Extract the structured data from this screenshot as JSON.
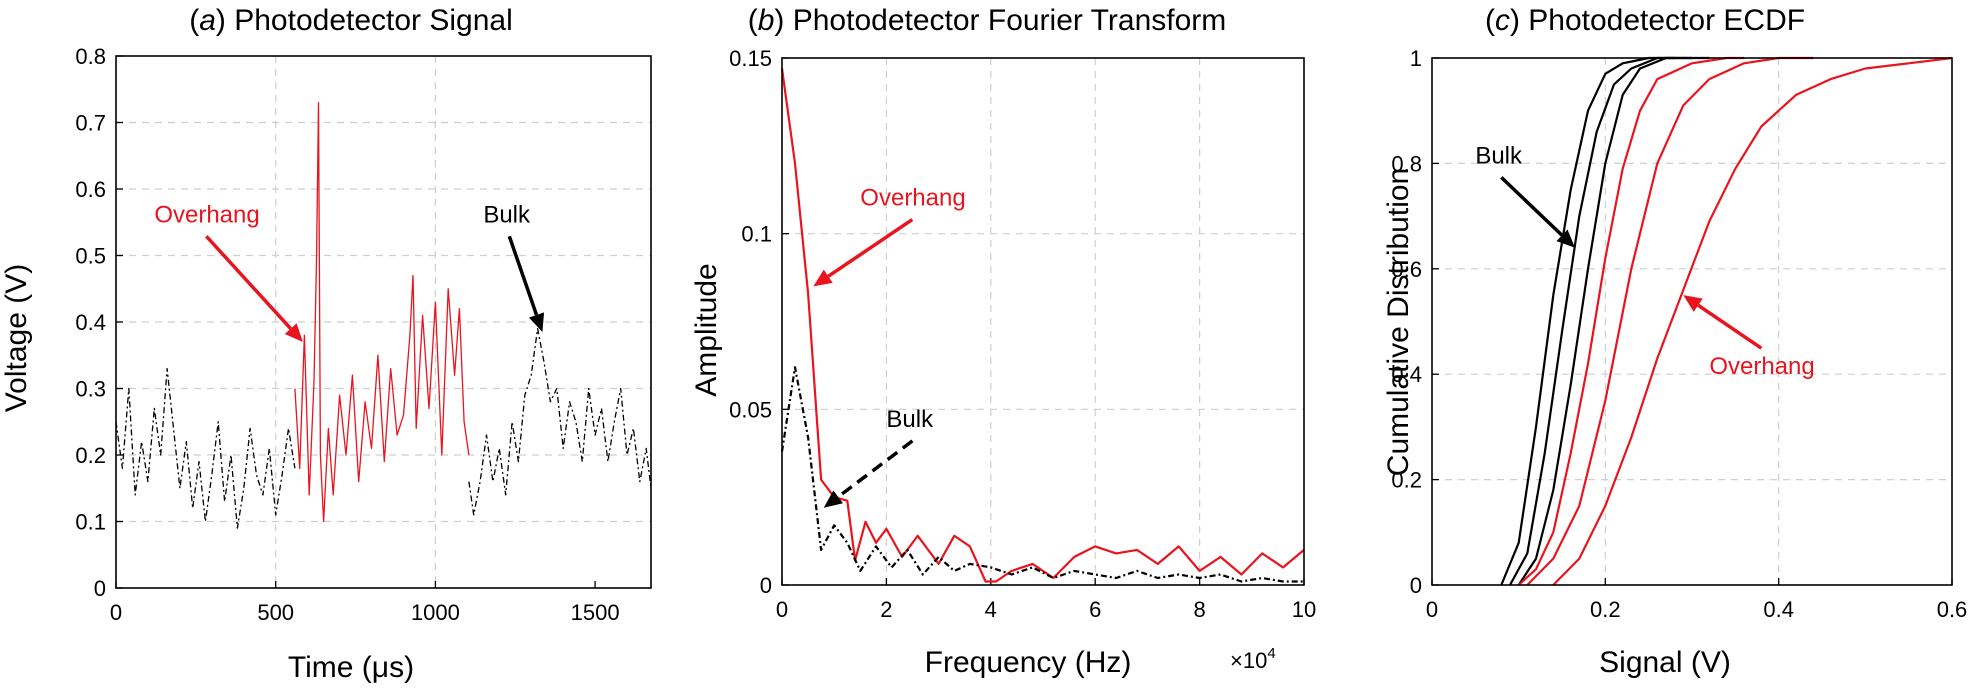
{
  "colors": {
    "overhang": "#e8141e",
    "bulk": "#000000"
  },
  "chart_data": [
    {
      "type": "line",
      "title": "Photodetector Signal",
      "panel_letter": "a",
      "xlabel": "Time (μs)",
      "ylabel": "Voltage (V)",
      "xlim": [
        0,
        1675
      ],
      "ylim": [
        0,
        0.8
      ],
      "xticks": [
        0,
        500,
        1000,
        1500
      ],
      "yticks": [
        0,
        0.1,
        0.2,
        0.3,
        0.4,
        0.5,
        0.6,
        0.7,
        0.8
      ],
      "grid": true,
      "series": [
        {
          "name": "Bulk",
          "style": "dashdot",
          "segments": [
            {
              "x": [
                0,
                20,
                40,
                60,
                80,
                100,
                120,
                140,
                160,
                180,
                200,
                220,
                240,
                260,
                280,
                300,
                320,
                340,
                360,
                380,
                400,
                420,
                440,
                460,
                480,
                500,
                520,
                540,
                560
              ],
              "y": [
                0.25,
                0.18,
                0.3,
                0.14,
                0.22,
                0.16,
                0.27,
                0.2,
                0.33,
                0.24,
                0.15,
                0.22,
                0.12,
                0.19,
                0.1,
                0.17,
                0.25,
                0.13,
                0.2,
                0.09,
                0.15,
                0.24,
                0.17,
                0.14,
                0.21,
                0.11,
                0.17,
                0.24,
                0.18
              ]
            },
            {
              "x": [
                1105,
                1120,
                1140,
                1160,
                1180,
                1200,
                1220,
                1240,
                1260,
                1280,
                1300,
                1320,
                1340,
                1360,
                1380,
                1400,
                1420,
                1440,
                1460,
                1480,
                1500,
                1520,
                1540,
                1560,
                1580,
                1600,
                1620,
                1640,
                1660,
                1675
              ],
              "y": [
                0.16,
                0.11,
                0.16,
                0.23,
                0.16,
                0.21,
                0.14,
                0.25,
                0.19,
                0.29,
                0.32,
                0.39,
                0.34,
                0.28,
                0.3,
                0.21,
                0.28,
                0.25,
                0.19,
                0.3,
                0.23,
                0.27,
                0.19,
                0.25,
                0.3,
                0.2,
                0.24,
                0.16,
                0.21,
                0.15
              ]
            }
          ]
        },
        {
          "name": "Overhang",
          "style": "solid",
          "segments": [
            {
              "x": [
                560,
                575,
                590,
                605,
                620,
                628,
                634,
                640,
                650,
                665,
                680,
                700,
                720,
                740,
                760,
                780,
                800,
                820,
                840,
                860,
                880,
                900,
                920,
                930,
                940,
                960,
                980,
                1000,
                1020,
                1040,
                1060,
                1075,
                1090,
                1105
              ],
              "y": [
                0.3,
                0.18,
                0.38,
                0.14,
                0.31,
                0.5,
                0.73,
                0.2,
                0.1,
                0.24,
                0.14,
                0.29,
                0.2,
                0.32,
                0.16,
                0.28,
                0.21,
                0.35,
                0.19,
                0.33,
                0.23,
                0.26,
                0.38,
                0.47,
                0.24,
                0.41,
                0.27,
                0.43,
                0.2,
                0.45,
                0.32,
                0.42,
                0.25,
                0.2
              ]
            }
          ]
        }
      ],
      "annotations": [
        {
          "text": "Overhang",
          "color": "overhang",
          "text_at": [
            120,
            0.55
          ],
          "arrow_to": [
            585,
            0.37
          ]
        },
        {
          "text": "Bulk",
          "color": "bulk",
          "text_at": [
            1150,
            0.55
          ],
          "arrow_to": [
            1335,
            0.385
          ]
        }
      ]
    },
    {
      "type": "line",
      "title": "Photodetector Fourier Transform",
      "panel_letter": "b",
      "xlabel": "Frequency (Hz)",
      "ylabel": "Amplitude",
      "x_multiplier": "×10",
      "x_multiplier_exp": "4",
      "xlim": [
        0,
        10
      ],
      "ylim": [
        0,
        0.15
      ],
      "xticks": [
        0,
        2,
        4,
        6,
        8,
        10
      ],
      "yticks": [
        0,
        0.05,
        0.1,
        0.15
      ],
      "grid": true,
      "series": [
        {
          "name": "Overhang",
          "style": "solid",
          "x": [
            0,
            0.25,
            0.5,
            0.75,
            1.0,
            1.25,
            1.4,
            1.6,
            1.8,
            2.0,
            2.3,
            2.6,
            3.0,
            3.3,
            3.6,
            3.9,
            4.1,
            4.4,
            4.8,
            5.2,
            5.6,
            6.0,
            6.4,
            6.8,
            7.2,
            7.6,
            8.0,
            8.4,
            8.8,
            9.2,
            9.6,
            10
          ],
          "y": [
            0.147,
            0.12,
            0.083,
            0.03,
            0.025,
            0.024,
            0.007,
            0.018,
            0.012,
            0.016,
            0.008,
            0.014,
            0.006,
            0.014,
            0.011,
            0.001,
            0.001,
            0.004,
            0.006,
            0.002,
            0.008,
            0.011,
            0.009,
            0.01,
            0.006,
            0.011,
            0.004,
            0.008,
            0.003,
            0.009,
            0.005,
            0.01
          ]
        },
        {
          "name": "Bulk",
          "style": "dashdot",
          "x": [
            0,
            0.25,
            0.5,
            0.75,
            1.0,
            1.25,
            1.5,
            1.8,
            2.1,
            2.4,
            2.7,
            3.0,
            3.3,
            3.6,
            4.0,
            4.4,
            4.8,
            5.2,
            5.6,
            6.0,
            6.4,
            6.8,
            7.2,
            7.6,
            8.0,
            8.4,
            8.8,
            9.2,
            9.6,
            10
          ],
          "y": [
            0.038,
            0.062,
            0.042,
            0.01,
            0.017,
            0.012,
            0.004,
            0.011,
            0.005,
            0.01,
            0.003,
            0.008,
            0.004,
            0.006,
            0.005,
            0.003,
            0.005,
            0.002,
            0.004,
            0.003,
            0.002,
            0.004,
            0.002,
            0.003,
            0.002,
            0.003,
            0.001,
            0.002,
            0.001,
            0.001
          ]
        }
      ],
      "annotations": [
        {
          "text": "Overhang",
          "color": "overhang",
          "text_at": [
            1.5,
            0.108
          ],
          "arrow_to": [
            0.6,
            0.085
          ]
        },
        {
          "text": "Bulk",
          "color": "bulk",
          "text_at": [
            2.0,
            0.045
          ],
          "arrow_to": [
            0.8,
            0.022
          ]
        }
      ]
    },
    {
      "type": "line",
      "title": "Photodetector ECDF",
      "panel_letter": "c",
      "xlabel": "Signal (V)",
      "ylabel": "Cumulative Distribution",
      "xlim": [
        0,
        0.6
      ],
      "ylim": [
        0,
        1
      ],
      "xticks": [
        0,
        0.2,
        0.4,
        0.6
      ],
      "yticks": [
        0,
        0.2,
        0.4,
        0.6,
        0.8,
        1
      ],
      "grid": true,
      "series": [
        {
          "name": "Bulk",
          "style": "solid",
          "x": [
            0.08,
            0.1,
            0.12,
            0.14,
            0.16,
            0.18,
            0.2,
            0.22,
            0.25,
            0.28
          ],
          "y": [
            0,
            0.08,
            0.3,
            0.55,
            0.75,
            0.9,
            0.97,
            0.99,
            1,
            1
          ]
        },
        {
          "name": "Bulk",
          "style": "solid",
          "x": [
            0.09,
            0.11,
            0.13,
            0.15,
            0.17,
            0.19,
            0.21,
            0.23,
            0.26,
            0.3
          ],
          "y": [
            0,
            0.06,
            0.25,
            0.48,
            0.7,
            0.86,
            0.95,
            0.98,
            1,
            1
          ]
        },
        {
          "name": "Bulk",
          "style": "solid",
          "x": [
            0.1,
            0.12,
            0.14,
            0.16,
            0.18,
            0.2,
            0.22,
            0.24,
            0.27,
            0.32
          ],
          "y": [
            0,
            0.05,
            0.18,
            0.38,
            0.6,
            0.8,
            0.93,
            0.98,
            1,
            1
          ]
        },
        {
          "name": "Overhang",
          "style": "solid",
          "x": [
            0.1,
            0.12,
            0.14,
            0.16,
            0.18,
            0.2,
            0.22,
            0.24,
            0.26,
            0.3,
            0.34,
            0.36
          ],
          "y": [
            0,
            0.03,
            0.1,
            0.25,
            0.42,
            0.62,
            0.79,
            0.9,
            0.96,
            0.99,
            1,
            1
          ]
        },
        {
          "name": "Overhang",
          "style": "solid",
          "x": [
            0.11,
            0.14,
            0.17,
            0.2,
            0.23,
            0.26,
            0.29,
            0.32,
            0.36,
            0.4,
            0.44
          ],
          "y": [
            0,
            0.05,
            0.15,
            0.35,
            0.6,
            0.8,
            0.91,
            0.96,
            0.99,
            1,
            1
          ]
        },
        {
          "name": "Overhang",
          "style": "solid",
          "x": [
            0.14,
            0.17,
            0.2,
            0.23,
            0.26,
            0.29,
            0.32,
            0.35,
            0.38,
            0.42,
            0.46,
            0.5,
            0.55,
            0.6
          ],
          "y": [
            0,
            0.05,
            0.15,
            0.28,
            0.43,
            0.56,
            0.69,
            0.79,
            0.87,
            0.93,
            0.96,
            0.98,
            0.99,
            1
          ]
        }
      ],
      "annotations": [
        {
          "text": "Bulk",
          "color": "bulk",
          "text_at": [
            0.05,
            0.8
          ],
          "arrow_to": [
            0.165,
            0.64
          ]
        },
        {
          "text": "Overhang",
          "color": "overhang",
          "text_at": [
            0.32,
            0.4
          ],
          "arrow_to": [
            0.29,
            0.55
          ]
        }
      ]
    }
  ]
}
